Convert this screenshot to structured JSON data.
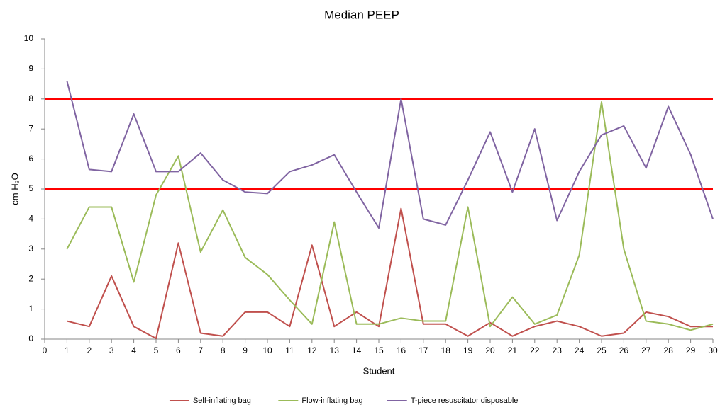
{
  "chart_data": {
    "type": "line",
    "title": "Median PEEP",
    "xlabel": "Student",
    "ylabel": "cm H₂O",
    "x": [
      1,
      2,
      3,
      4,
      5,
      6,
      7,
      8,
      9,
      10,
      11,
      12,
      13,
      14,
      15,
      16,
      17,
      18,
      19,
      20,
      21,
      22,
      23,
      24,
      25,
      26,
      27,
      28,
      29,
      30
    ],
    "series": [
      {
        "name": "Self-inflating bag",
        "color": "#c0504d",
        "values": [
          0.6,
          0.42,
          2.1,
          0.42,
          0.02,
          3.2,
          0.2,
          0.1,
          0.9,
          0.9,
          0.42,
          3.13,
          0.42,
          0.9,
          0.42,
          4.35,
          0.5,
          0.5,
          0.1,
          0.55,
          0.1,
          0.42,
          0.6,
          0.42,
          0.1,
          0.2,
          0.9,
          0.75,
          0.42,
          0.42
        ]
      },
      {
        "name": "Flow-inflating bag",
        "color": "#9bbb59",
        "values": [
          3.0,
          4.4,
          4.4,
          1.9,
          4.8,
          6.1,
          2.9,
          4.3,
          2.72,
          2.15,
          1.3,
          0.5,
          3.9,
          0.5,
          0.5,
          0.7,
          0.6,
          0.6,
          4.4,
          0.42,
          1.4,
          0.5,
          0.8,
          2.8,
          7.9,
          3.0,
          0.6,
          0.5,
          0.3,
          0.5
        ]
      },
      {
        "name": "T-piece resuscitator disposable",
        "color": "#8064a2",
        "values": [
          8.6,
          5.65,
          5.58,
          7.5,
          5.58,
          5.58,
          6.2,
          5.3,
          4.9,
          4.85,
          5.58,
          5.8,
          6.14,
          4.9,
          3.7,
          8.0,
          4.0,
          3.8,
          5.3,
          6.9,
          4.9,
          7.0,
          3.95,
          5.58,
          6.8,
          7.1,
          5.7,
          7.75,
          6.15,
          4.0
        ]
      }
    ],
    "reference_lines": [
      {
        "value": 5,
        "color": "#ff0000"
      },
      {
        "value": 8,
        "color": "#ff0000"
      }
    ],
    "xlim": [
      0,
      30
    ],
    "xticks": [
      0,
      1,
      2,
      3,
      4,
      5,
      6,
      7,
      8,
      9,
      10,
      11,
      12,
      13,
      14,
      15,
      16,
      17,
      18,
      19,
      20,
      21,
      22,
      23,
      24,
      25,
      26,
      27,
      28,
      29,
      30
    ],
    "ylim": [
      0,
      10
    ],
    "yticks": [
      0,
      1,
      2,
      3,
      4,
      5,
      6,
      7,
      8,
      9,
      10
    ],
    "grid": false,
    "legend": "bottom"
  }
}
